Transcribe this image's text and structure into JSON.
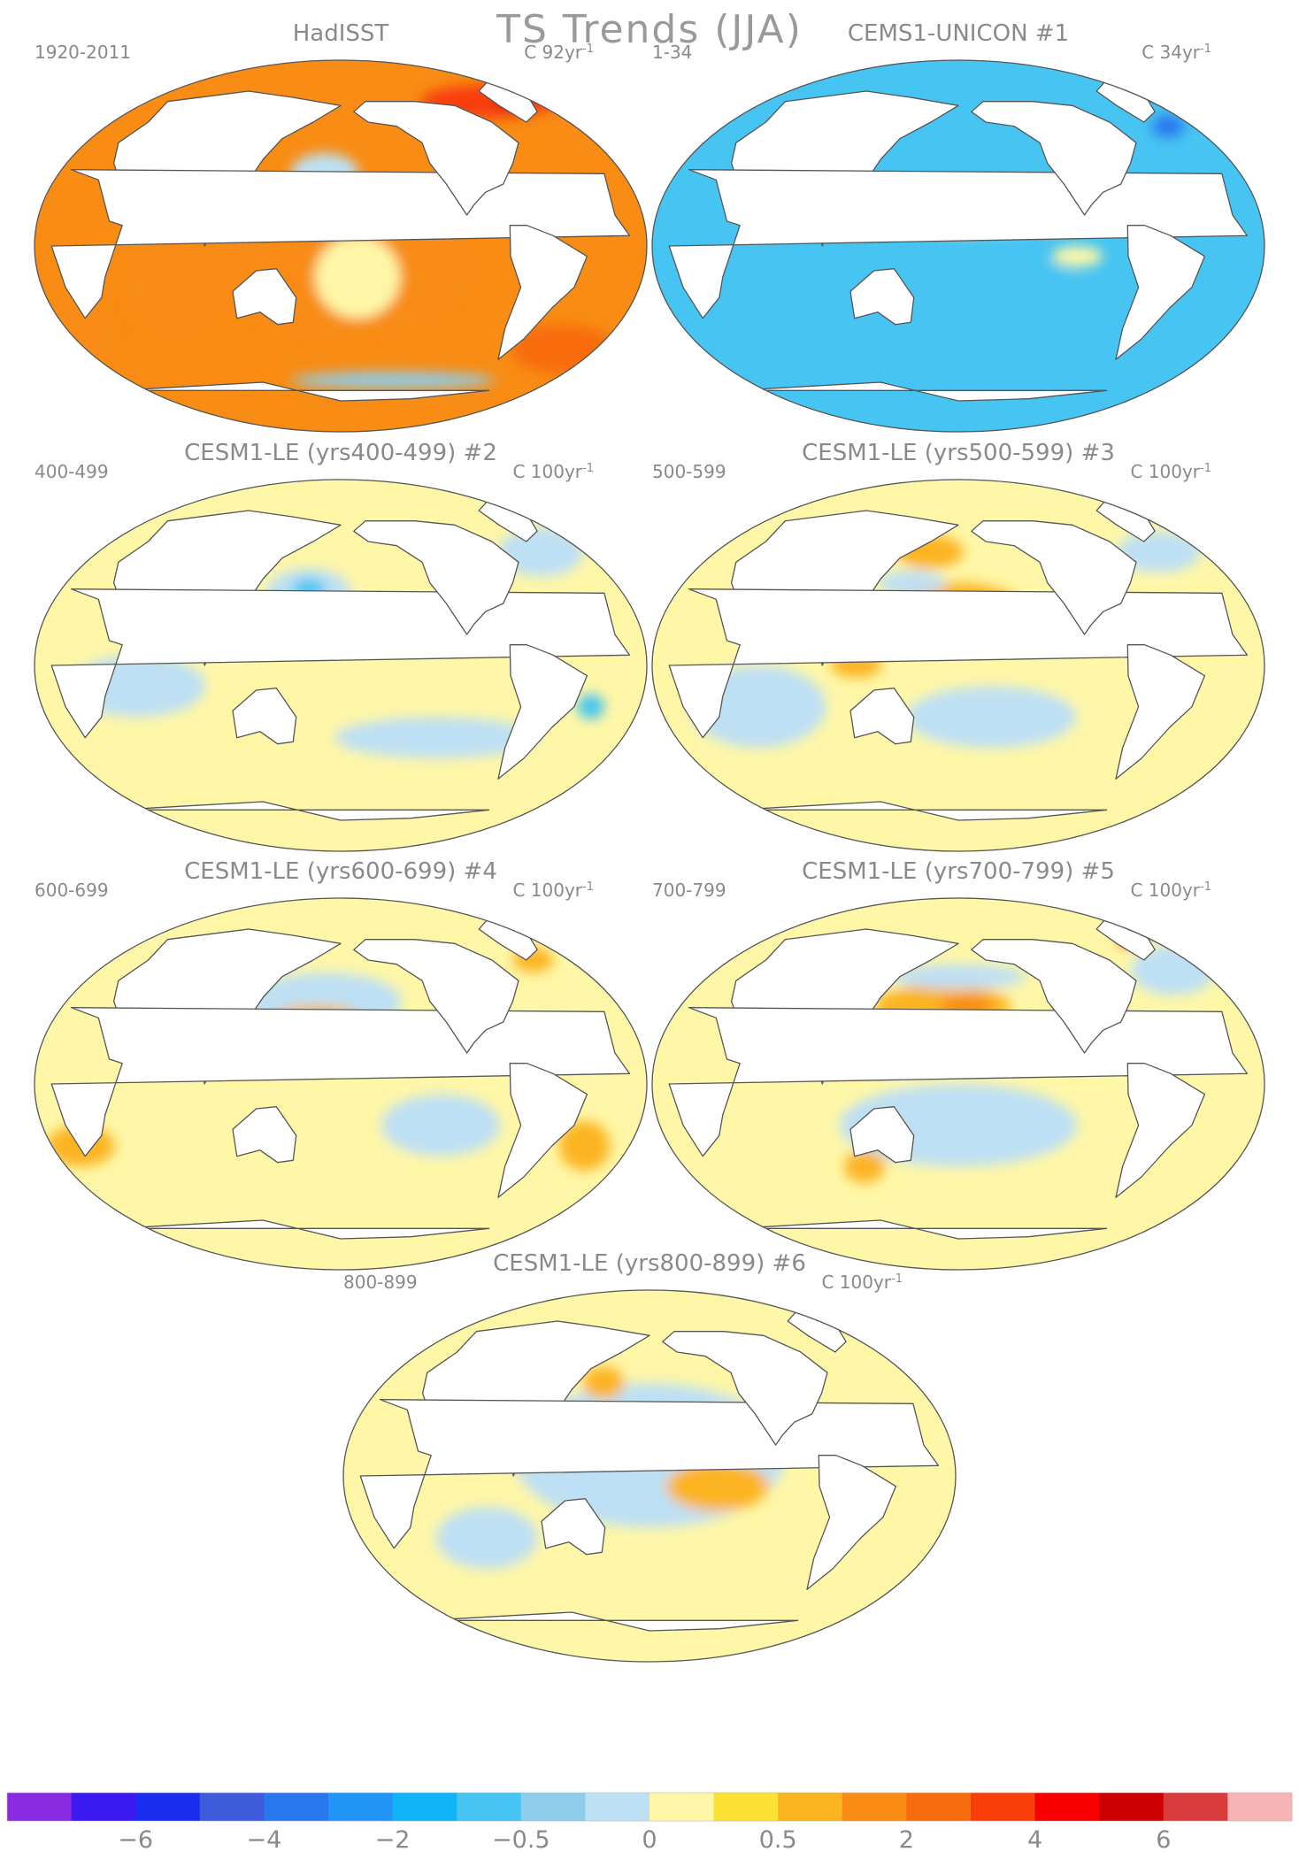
{
  "title": "TS Trends (JJA)",
  "chart_data": [
    {
      "type": "heatmap",
      "title": "HadISST",
      "period": "1920-2011",
      "units": "C 92yr",
      "units_exp": "-1",
      "projection": "Robinson (Pacific-centered)",
      "dominant_level": "0.5 to 2 (yellow-orange), red near Arctic/Greenland",
      "fields": [
        {
          "level": 1.5,
          "lon": 180,
          "lat": -10,
          "rx": 80,
          "ry": 35
        },
        {
          "level": 1.5,
          "lon": 80,
          "lat": -20,
          "rx": 30,
          "ry": 25
        },
        {
          "level": 1.5,
          "lon": 0,
          "lat": -45,
          "rx": 30,
          "ry": 20
        },
        {
          "level": 0.2,
          "lon": 190,
          "lat": -15,
          "rx": 25,
          "ry": 20
        },
        {
          "level": -0.2,
          "lon": 170,
          "lat": 35,
          "rx": 20,
          "ry": 10
        },
        {
          "level": 3,
          "lon": 300,
          "lat": 70,
          "rx": 40,
          "ry": 8
        },
        {
          "level": 5,
          "lon": 320,
          "lat": 72,
          "rx": 8,
          "ry": 5
        },
        {
          "level": 2.5,
          "lon": 330,
          "lat": -50,
          "rx": 30,
          "ry": 12
        },
        {
          "level": -0.5,
          "lon": 220,
          "lat": -65,
          "rx": 60,
          "ry": 4
        }
      ]
    },
    {
      "type": "heatmap",
      "title": "CEMS1-UNICON",
      "panel_number": "#1",
      "period": "1-34",
      "units": "C 34yr",
      "units_exp": "-1",
      "dominant_level": "-0.5 to -2 (blue)",
      "fields": [
        {
          "level": -1,
          "lon": 180,
          "lat": -30,
          "rx": 90,
          "ry": 25
        },
        {
          "level": -1,
          "lon": 90,
          "lat": -40,
          "rx": 40,
          "ry": 15
        },
        {
          "level": -1,
          "lon": 60,
          "lat": 10,
          "rx": 25,
          "ry": 20
        },
        {
          "level": -1,
          "lon": 160,
          "lat": 35,
          "rx": 45,
          "ry": 12
        },
        {
          "level": -1,
          "lon": 330,
          "lat": 55,
          "rx": 25,
          "ry": 12
        },
        {
          "level": -2.5,
          "lon": 330,
          "lat": 58,
          "rx": 10,
          "ry": 6
        },
        {
          "level": 0.2,
          "lon": 190,
          "lat": 12,
          "rx": 50,
          "ry": 6
        },
        {
          "level": 0.2,
          "lon": 250,
          "lat": -5,
          "rx": 15,
          "ry": 5
        }
      ]
    },
    {
      "type": "heatmap",
      "title": "CESM1-LE (yrs400-499)",
      "panel_number": "#2",
      "period": "400-499",
      "units": "C 100yr",
      "units_exp": "-1",
      "dominant_level": "0 to 0.5 (light yellow)",
      "fields": [
        {
          "level": -0.2,
          "lon": 160,
          "lat": 35,
          "rx": 25,
          "ry": 12
        },
        {
          "level": -1,
          "lon": 160,
          "lat": 37,
          "rx": 10,
          "ry": 5
        },
        {
          "level": 0.7,
          "lon": 180,
          "lat": 20,
          "rx": 25,
          "ry": 10
        },
        {
          "level": -0.2,
          "lon": 60,
          "lat": -10,
          "rx": 40,
          "ry": 15
        },
        {
          "level": -0.2,
          "lon": 240,
          "lat": -35,
          "rx": 60,
          "ry": 10
        },
        {
          "level": -0.2,
          "lon": 320,
          "lat": 55,
          "rx": 25,
          "ry": 12
        },
        {
          "level": -1,
          "lon": 330,
          "lat": -20,
          "rx": 8,
          "ry": 6
        }
      ]
    },
    {
      "type": "heatmap",
      "title": "CESM1-LE (yrs500-599)",
      "panel_number": "#3",
      "period": "500-599",
      "units": "C 100yr",
      "units_exp": "-1",
      "dominant_level": "0 to 0.5 (light yellow)",
      "fields": [
        {
          "level": 0.7,
          "lon": 180,
          "lat": 25,
          "rx": 40,
          "ry": 15
        },
        {
          "level": 0.7,
          "lon": 160,
          "lat": 55,
          "rx": 20,
          "ry": 8
        },
        {
          "level": 0.7,
          "lon": 120,
          "lat": 0,
          "rx": 15,
          "ry": 6
        },
        {
          "level": -0.2,
          "lon": 150,
          "lat": 40,
          "rx": 20,
          "ry": 6
        },
        {
          "level": -0.2,
          "lon": 200,
          "lat": -25,
          "rx": 50,
          "ry": 15
        },
        {
          "level": -0.2,
          "lon": 60,
          "lat": -20,
          "rx": 40,
          "ry": 20
        },
        {
          "level": -0.2,
          "lon": 320,
          "lat": 55,
          "rx": 25,
          "ry": 10
        }
      ]
    },
    {
      "type": "heatmap",
      "title": "CESM1-LE (yrs600-699)",
      "panel_number": "#4",
      "period": "600-699",
      "units": "C 100yr",
      "units_exp": "-1",
      "dominant_level": "0 to 0.5 (light yellow)",
      "fields": [
        {
          "level": -0.2,
          "lon": 170,
          "lat": 40,
          "rx": 45,
          "ry": 14
        },
        {
          "level": 0.7,
          "lon": 165,
          "lat": 32,
          "rx": 25,
          "ry": 6
        },
        {
          "level": -0.2,
          "lon": 240,
          "lat": -20,
          "rx": 35,
          "ry": 15
        },
        {
          "level": 0.7,
          "lon": 20,
          "lat": -30,
          "rx": 20,
          "ry": 10
        },
        {
          "level": 0.7,
          "lon": 330,
          "lat": -30,
          "rx": 15,
          "ry": 12
        },
        {
          "level": 0.7,
          "lon": 320,
          "lat": 60,
          "rx": 12,
          "ry": 6
        }
      ]
    },
    {
      "type": "heatmap",
      "title": "CESM1-LE (yrs700-799)",
      "panel_number": "#5",
      "period": "700-799",
      "units": "C 100yr",
      "units_exp": "-1",
      "dominant_level": "0 to 0.5 (light yellow)",
      "fields": [
        {
          "level": 0.7,
          "lon": 170,
          "lat": 38,
          "rx": 40,
          "ry": 10
        },
        {
          "level": 1.5,
          "lon": 185,
          "lat": 38,
          "rx": 15,
          "ry": 5
        },
        {
          "level": -0.2,
          "lon": 180,
          "lat": 52,
          "rx": 40,
          "ry": 6
        },
        {
          "level": -0.2,
          "lon": 180,
          "lat": -20,
          "rx": 70,
          "ry": 20
        },
        {
          "level": 0.7,
          "lon": 120,
          "lat": -40,
          "rx": 12,
          "ry": 8
        },
        {
          "level": -0.2,
          "lon": 330,
          "lat": 55,
          "rx": 25,
          "ry": 12
        },
        {
          "level": 2.5,
          "lon": 320,
          "lat": 70,
          "rx": 8,
          "ry": 4
        }
      ]
    },
    {
      "type": "heatmap",
      "title": "CESM1-LE (yrs800-899)",
      "panel_number": "#6",
      "period": "800-899",
      "units": "C 100yr",
      "units_exp": "-1",
      "dominant_level": "0 to 0.5 (light yellow)",
      "fields": [
        {
          "level": -0.2,
          "lon": 180,
          "lat": 10,
          "rx": 80,
          "ry": 35
        },
        {
          "level": 0.7,
          "lon": 220,
          "lat": -5,
          "rx": 30,
          "ry": 12
        },
        {
          "level": 0.7,
          "lon": 150,
          "lat": 45,
          "rx": 12,
          "ry": 8
        },
        {
          "level": -0.2,
          "lon": 80,
          "lat": -30,
          "rx": 30,
          "ry": 15
        }
      ]
    }
  ],
  "colorbar": {
    "colors": [
      "#8a2be2",
      "#3a1af0",
      "#1a2ef0",
      "#3c5cdc",
      "#2a78ee",
      "#2294f8",
      "#10b4f8",
      "#46c4f2",
      "#8ecdeb",
      "#bee0f4",
      "#fff7a8",
      "#fde034",
      "#fcb420",
      "#f88c14",
      "#f86c10",
      "#f83e08",
      "#f80000",
      "#cc0000",
      "#d83c3c",
      "#f8b4b4"
    ],
    "tick_labels": [
      "-6",
      "-4",
      "-2",
      "-0.5",
      "0",
      "0.5",
      "2",
      "4",
      "6"
    ],
    "tick_positions_index": [
      2,
      4,
      6,
      8,
      10,
      12,
      14,
      16,
      18
    ]
  }
}
